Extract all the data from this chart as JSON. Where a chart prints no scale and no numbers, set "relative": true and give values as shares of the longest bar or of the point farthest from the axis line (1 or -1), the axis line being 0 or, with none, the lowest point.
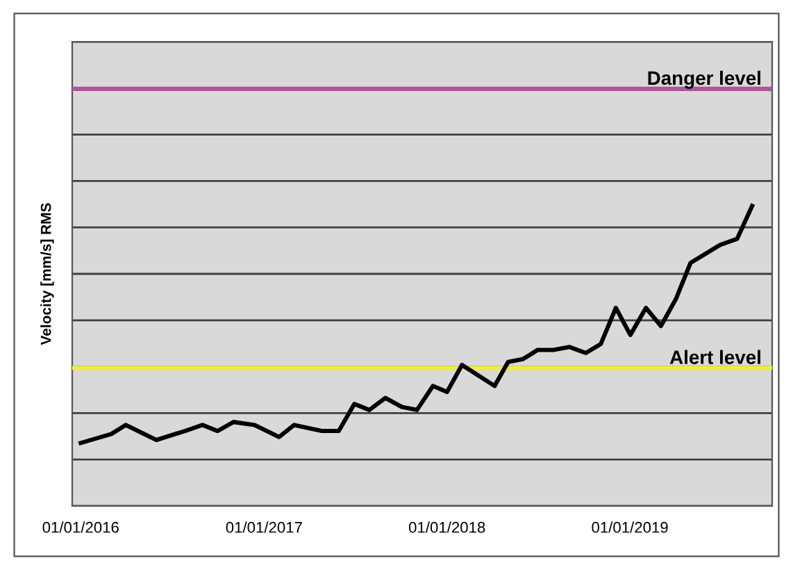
{
  "chart_data": {
    "type": "line",
    "ylabel": "Velocity [mm/s] RMS",
    "relative": true,
    "grid": "y",
    "legend": false,
    "x": [
      "2016-01-01",
      "2016-03-02",
      "2016-03-31",
      "2016-05-31",
      "2016-07-27",
      "2016-08-31",
      "2016-09-30",
      "2016-11-01",
      "2016-12-13",
      "2017-01-31",
      "2017-03-02",
      "2017-04-26",
      "2017-05-30",
      "2017-06-30",
      "2017-07-30",
      "2017-08-31",
      "2017-10-03",
      "2017-11-02",
      "2017-12-04",
      "2018-01-01",
      "2018-01-31",
      "2018-04-06",
      "2018-05-03",
      "2018-06-02",
      "2018-07-01",
      "2018-08-01",
      "2018-09-02",
      "2018-10-05",
      "2018-11-04",
      "2018-12-04",
      "2019-01-02",
      "2019-02-02",
      "2019-03-04",
      "2019-04-03",
      "2019-05-02",
      "2019-06-30",
      "2019-08-03",
      "2019-09-02"
    ],
    "series": [
      {
        "color": "#000000",
        "values": [
          0.21,
          0.24,
          0.27,
          0.22,
          0.25,
          0.27,
          0.25,
          0.28,
          0.27,
          0.23,
          0.27,
          0.25,
          0.25,
          0.34,
          0.32,
          0.36,
          0.33,
          0.32,
          0.4,
          0.38,
          0.47,
          0.4,
          0.48,
          0.49,
          0.52,
          0.52,
          0.53,
          0.51,
          0.54,
          0.66,
          0.57,
          0.66,
          0.6,
          0.69,
          0.81,
          0.87,
          0.89,
          1.0
        ]
      }
    ],
    "xlim": [
      "2015-12-15",
      "2019-10-12"
    ],
    "xticks": [
      {
        "value": "2016-01-01",
        "label": "01/01/2016"
      },
      {
        "value": "2017-01-01",
        "label": "01/01/2017"
      },
      {
        "value": "2018-01-01",
        "label": "01/01/2018"
      },
      {
        "value": "2019-01-01",
        "label": "01/01/2019"
      }
    ],
    "ref_lines": [
      {
        "axis": "y",
        "value": 1.39,
        "label": "Danger level",
        "color": "#a8579a"
      },
      {
        "axis": "y",
        "value": 0.46,
        "label": "Alert level",
        "color": "#eded45"
      }
    ],
    "line_style": "solid",
    "marker": "none"
  }
}
